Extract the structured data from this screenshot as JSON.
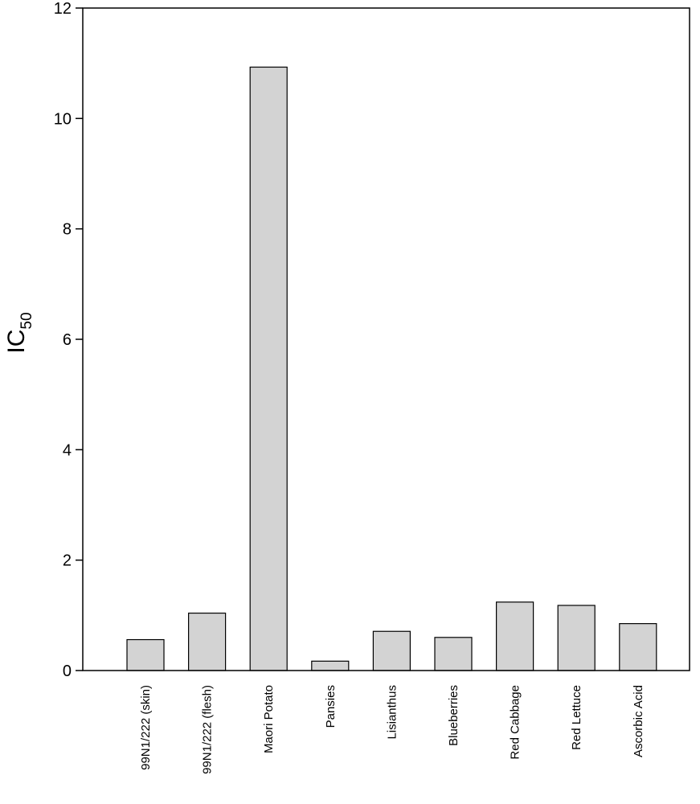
{
  "chart_data": {
    "type": "bar",
    "title": "",
    "xlabel": "",
    "ylabel": "IC",
    "ylabel_subscript": "50",
    "categories": [
      "99N1/222 (skin)",
      "99N1/222 (flesh)",
      "Maori Potato",
      "Pansies",
      "Lisianthus",
      "Blueberries",
      "Red Cabbage",
      "Red Lettuce",
      "Ascorbic Acid"
    ],
    "values": [
      0.56,
      1.04,
      10.93,
      0.17,
      0.71,
      0.6,
      1.24,
      1.18,
      0.85
    ],
    "ylim": [
      0,
      12
    ],
    "yticks": [
      0,
      2,
      4,
      6,
      8,
      10,
      12
    ],
    "grid": false,
    "bar_color": "#d3d3d3",
    "edge_color": "#000000"
  }
}
